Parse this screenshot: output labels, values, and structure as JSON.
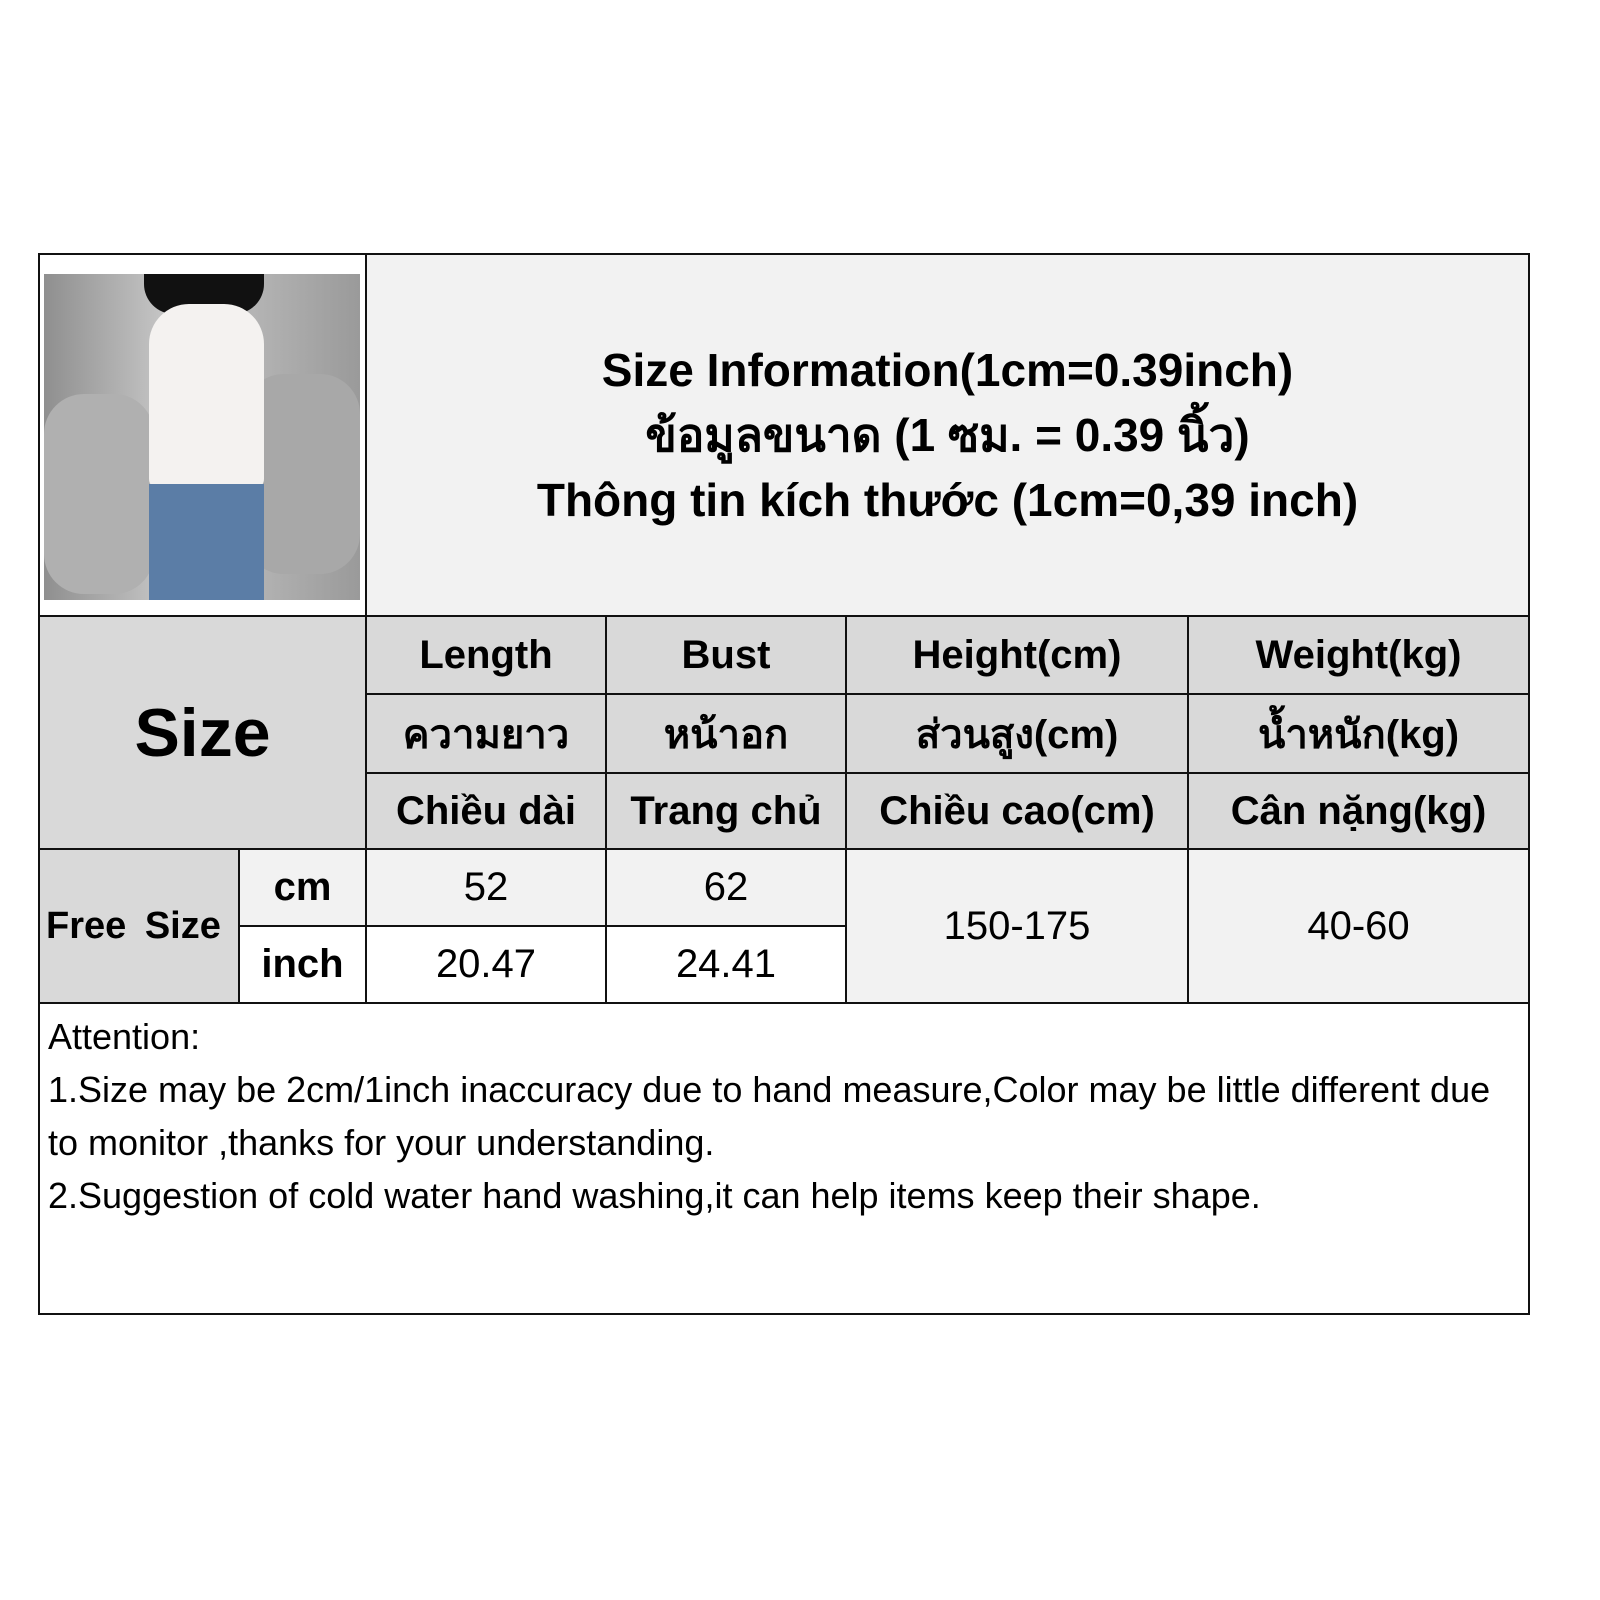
{
  "title_lines": [
    "Size Information(1cm=0.39inch)",
    "ข้อมูลขนาด (1 ซม. = 0.39 นิ้ว)",
    "Thông tin kích thước (1cm=0,39 inch)"
  ],
  "size_label": "Size",
  "columns": [
    {
      "en": "Length",
      "th": "ความยาว",
      "vi": "Chiều dài"
    },
    {
      "en": "Bust",
      "th": "หน้าอก",
      "vi": "Trang chủ"
    },
    {
      "en": "Height(cm)",
      "th": "ส่วนสูง(cm)",
      "vi": "Chiều cao(cm)"
    },
    {
      "en": "Weight(kg)",
      "th": "น้ำหนัก(kg)",
      "vi": "Cân nặng(kg)"
    }
  ],
  "row": {
    "size": "Free Size",
    "units": [
      "cm",
      "inch"
    ],
    "length": [
      "52",
      "20.47"
    ],
    "bust": [
      "62",
      "24.41"
    ],
    "height": "150-175",
    "weight": "40-60"
  },
  "attention": {
    "heading": "Attention:",
    "lines": [
      "1.Size may be 2cm/1inch inaccuracy due to hand measure,Color may be little different due to monitor ,thanks for your understanding.",
      "2.Suggestion of cold water hand washing,it can help items keep their shape."
    ]
  }
}
